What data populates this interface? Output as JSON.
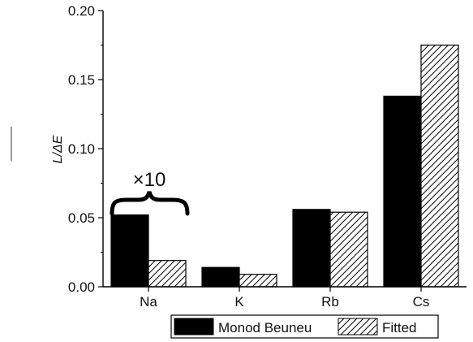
{
  "chart_data": {
    "type": "bar",
    "categories": [
      "Na",
      "K",
      "Rb",
      "Cs"
    ],
    "series": [
      {
        "name": "Monod Beuneu",
        "values": [
          0.052,
          0.014,
          0.056,
          0.138
        ],
        "fill": "#000000"
      },
      {
        "name": "Fitted",
        "values": [
          0.019,
          0.009,
          0.054,
          0.175
        ],
        "fill": "hatched"
      }
    ],
    "ylabel": "L/ΔE",
    "ylim": [
      0,
      0.2
    ],
    "yticks": [
      "0.00",
      "0.05",
      "0.10",
      "0.15",
      "0.20"
    ],
    "annotations": [
      {
        "text": "×10",
        "category": "Na"
      }
    ],
    "legend": {
      "position": "bottom-right",
      "entries": [
        "Monod Beuneu",
        "Fitted"
      ]
    },
    "grid": false
  }
}
